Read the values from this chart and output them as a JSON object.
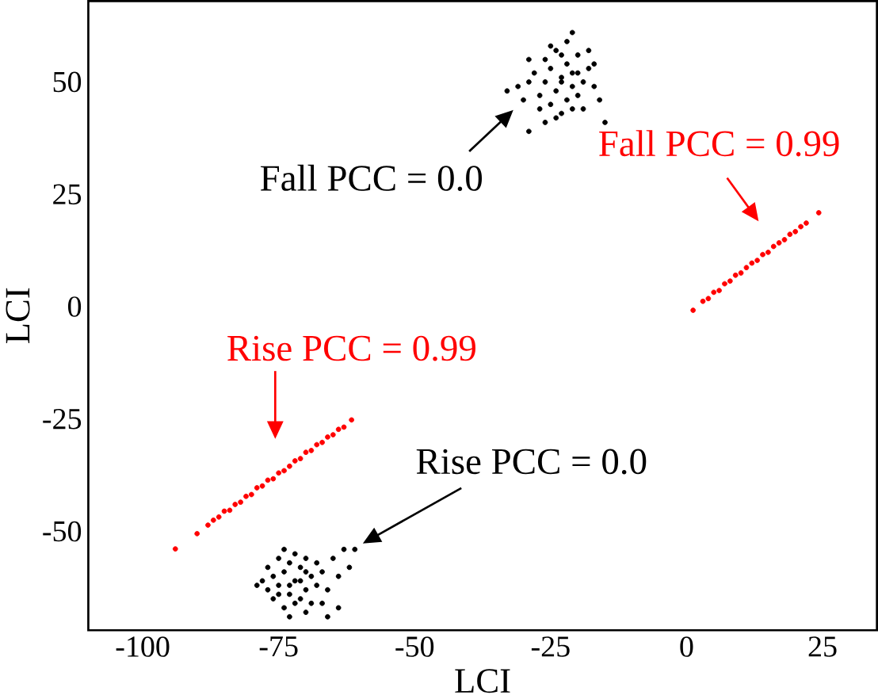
{
  "chart_data": {
    "type": "scatter",
    "xlabel": "LCI",
    "ylabel": "LCI",
    "xlim": [
      -110,
      35
    ],
    "ylim": [
      -72,
      68
    ],
    "xticks": [
      -100,
      -75,
      -50,
      -25,
      0,
      25
    ],
    "yticks": [
      -50,
      -25,
      0,
      25,
      50
    ],
    "series": [
      {
        "color": "#000000",
        "x": [
          -23,
          -25,
          -21,
          -24,
          -22,
          -20,
          -26,
          -23,
          -19,
          -27,
          -22,
          -24,
          -18,
          -21,
          -25,
          -28,
          -20,
          -23,
          -26,
          -17,
          -29,
          -22,
          -20,
          -25,
          -16,
          -27,
          -19,
          -24,
          -31,
          -30,
          -15,
          -33,
          -29,
          -21,
          -18,
          -26,
          -29,
          -17,
          -23,
          -21
        ],
        "values": [
          51,
          53,
          49,
          48,
          54,
          52,
          50,
          56,
          50,
          47,
          46,
          57,
          53,
          44,
          45,
          52,
          47,
          43,
          55,
          49,
          50,
          59,
          56,
          58,
          46,
          44,
          44,
          42,
          49,
          46,
          41,
          48,
          39,
          61,
          57,
          41,
          55,
          54,
          50,
          52
        ]
      },
      {
        "color": "#ff0000",
        "x": [
          1.2,
          3,
          4,
          5,
          6,
          7,
          8,
          9,
          10,
          11,
          12,
          13,
          14,
          15,
          16,
          17,
          18,
          19,
          20,
          21,
          22,
          24.3
        ],
        "values": [
          -0.8,
          1.2,
          1.8,
          3.2,
          3.6,
          5.1,
          5.7,
          7,
          7.5,
          8.7,
          9.7,
          10.3,
          11.6,
          12.1,
          13.4,
          14.2,
          14.9,
          16.1,
          16.7,
          17.8,
          18.6,
          20.9
        ]
      },
      {
        "color": "#ff0000",
        "x": [
          -94,
          -90,
          -88,
          -87,
          -86,
          -85,
          -84,
          -83,
          -82,
          -81,
          -80,
          -79,
          -78,
          -77,
          -76,
          -75,
          -74,
          -73,
          -72,
          -71,
          -70,
          -69,
          -68,
          -67,
          -66,
          -65,
          -64,
          -63,
          -61.6
        ],
        "values": [
          -53.9,
          -50.5,
          -48.6,
          -47.5,
          -46.8,
          -45.5,
          -45.3,
          -44,
          -43.5,
          -42.2,
          -41.8,
          -40.3,
          -39.9,
          -38.6,
          -38.3,
          -37,
          -36.5,
          -35.5,
          -34.3,
          -33.8,
          -32.4,
          -32,
          -30.7,
          -30.2,
          -29,
          -28.5,
          -27.3,
          -26.8,
          -25.2
        ]
      },
      {
        "color": "#000000",
        "x": [
          -72,
          -74,
          -70,
          -73,
          -71,
          -75,
          -69,
          -72,
          -76,
          -70,
          -73,
          -68,
          -77,
          -74,
          -71,
          -67,
          -78,
          -75,
          -69,
          -72,
          -66,
          -79,
          -76,
          -70,
          -73,
          -65,
          -64,
          -67,
          -63,
          -62,
          -64,
          -77,
          -74,
          -68,
          -71,
          -73,
          -70,
          -75,
          -61,
          -66
        ],
        "values": [
          -61,
          -59,
          -63,
          -64,
          -58,
          -62,
          -60,
          -66,
          -60,
          -56,
          -57,
          -62,
          -63,
          -67,
          -65,
          -59,
          -61,
          -56,
          -66,
          -55,
          -63,
          -62,
          -65,
          -68,
          -69,
          -56,
          -60,
          -66,
          -54,
          -58,
          -67,
          -58,
          -54,
          -57,
          -61,
          -62,
          -59,
          -64,
          -54,
          -69
        ]
      }
    ],
    "annotations": [
      "Fall PCC = 0.0",
      "Fall PCC = 0.99",
      "Rise PCC = 0.99",
      "Rise PCC = 0.0"
    ]
  }
}
